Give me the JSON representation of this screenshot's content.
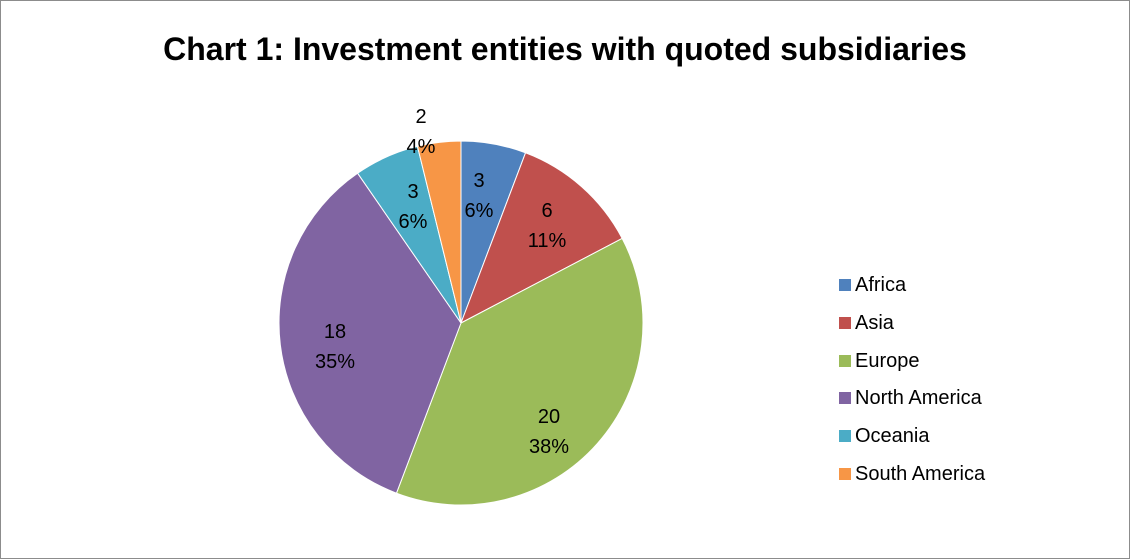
{
  "chart_data": {
    "type": "pie",
    "title": "Chart 1: Investment entities with quoted subsidiaries",
    "categories": [
      "Africa",
      "Asia",
      "Europe",
      "North America",
      "Oceania",
      "South America"
    ],
    "values": [
      3,
      6,
      20,
      18,
      3,
      2
    ],
    "percent_labels": [
      "6%",
      "11%",
      "38%",
      "35%",
      "6%",
      "4%"
    ],
    "colors": [
      "#4f81bd",
      "#c0504d",
      "#9bbb59",
      "#8064a2",
      "#4bacc6",
      "#f79646"
    ],
    "legend": "right",
    "start_angle": "12 o'clock",
    "direction": "clockwise"
  }
}
